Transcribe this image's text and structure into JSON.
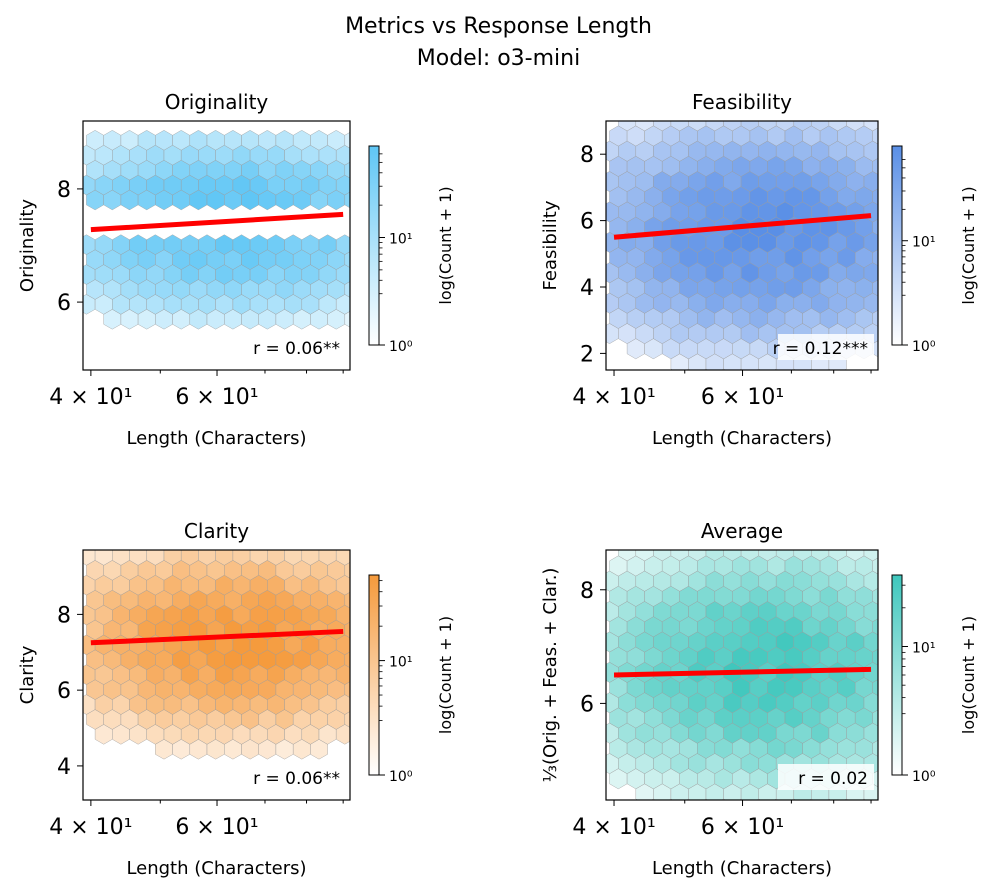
{
  "figure": {
    "title_line1": "Metrics vs Response Length",
    "title_line2": "Model: o3-mini"
  },
  "chart_data": [
    {
      "type": "heatmap",
      "subtype": "hexbin",
      "title": "Originality",
      "xlabel": "Length (Characters)",
      "ylabel": "Originality",
      "x_scale": "log",
      "x_ticks": [
        40,
        60
      ],
      "x_tick_labels": [
        "4 × 10¹",
        "6 × 10¹"
      ],
      "xlim": [
        39,
        92
      ],
      "y_ticks": [
        6,
        8
      ],
      "y_tick_labels": [
        "6",
        "8"
      ],
      "ylim": [
        4.8,
        9.2
      ],
      "colormap": [
        "#ffffff",
        "#5fc6f5"
      ],
      "colorbar_label": "log(Count + 1)",
      "colorbar_ticks": [
        "10⁰",
        "10¹"
      ],
      "colorbar_max": 70,
      "regression": {
        "x": [
          40,
          90
        ],
        "y": [
          7.28,
          7.55
        ],
        "color": "#ff0000"
      },
      "correlation_label": "r = 0.06**",
      "value_levels": [
        5.6,
        5.9,
        6.2,
        6.5,
        6.8,
        7.1,
        7.4,
        7.7,
        8.0,
        8.3,
        8.6,
        8.9
      ],
      "level_weights": [
        0.06,
        0.18,
        0.3,
        0.55,
        0.7,
        0.95,
        0.8,
        1.0,
        0.85,
        0.5,
        0.25,
        0.12
      ],
      "distribution": {
        "y_center": 7.3,
        "y_spread": 1.0,
        "x_center": 62,
        "x_spread": 0.28,
        "peak": 60
      }
    },
    {
      "type": "heatmap",
      "subtype": "hexbin",
      "title": "Feasibility",
      "xlabel": "Length (Characters)",
      "ylabel": "Feasibility",
      "x_scale": "log",
      "x_ticks": [
        40,
        60
      ],
      "x_tick_labels": [
        "4 × 10¹",
        "6 × 10¹"
      ],
      "xlim": [
        39,
        92
      ],
      "y_ticks": [
        2,
        4,
        6,
        8
      ],
      "y_tick_labels": [
        "2",
        "4",
        "6",
        "8"
      ],
      "ylim": [
        1.5,
        9.0
      ],
      "colormap": [
        "#ffffff",
        "#5a8fe6"
      ],
      "colorbar_label": "log(Count + 1)",
      "colorbar_ticks": [
        "10⁰",
        "10¹"
      ],
      "colorbar_max": 80,
      "regression": {
        "x": [
          40,
          90
        ],
        "y": [
          5.5,
          6.15
        ],
        "color": "#ff0000"
      },
      "correlation_label": "r = 0.12***",
      "distribution": {
        "y_center": 5.6,
        "y_spread": 1.5,
        "x_center": 64,
        "x_spread": 0.28,
        "peak": 70
      }
    },
    {
      "type": "heatmap",
      "subtype": "hexbin",
      "title": "Clarity",
      "xlabel": "Length (Characters)",
      "ylabel": "Clarity",
      "x_scale": "log",
      "x_ticks": [
        40,
        60
      ],
      "x_tick_labels": [
        "4 × 10¹",
        "6 × 10¹"
      ],
      "xlim": [
        39,
        92
      ],
      "y_ticks": [
        4,
        6,
        8
      ],
      "y_tick_labels": [
        "4",
        "6",
        "8"
      ],
      "ylim": [
        3.1,
        9.7
      ],
      "colormap": [
        "#ffffff",
        "#f59a3c"
      ],
      "colorbar_label": "log(Count + 1)",
      "colorbar_ticks": [
        "10⁰",
        "10¹"
      ],
      "colorbar_max": 55,
      "regression": {
        "x": [
          40,
          90
        ],
        "y": [
          7.25,
          7.55
        ],
        "color": "#ff0000"
      },
      "correlation_label": "r = 0.06**",
      "distribution": {
        "y_center": 7.3,
        "y_spread": 1.1,
        "x_center": 64,
        "x_spread": 0.28,
        "peak": 50
      }
    },
    {
      "type": "heatmap",
      "subtype": "hexbin",
      "title": "Average",
      "xlabel": "Length (Characters)",
      "ylabel": "⅓(Orig. + Feas. + Clar.)",
      "x_scale": "log",
      "x_ticks": [
        40,
        60
      ],
      "x_tick_labels": [
        "4 × 10¹",
        "6 × 10¹"
      ],
      "xlim": [
        39,
        92
      ],
      "y_ticks": [
        6,
        8
      ],
      "y_tick_labels": [
        "6",
        "8"
      ],
      "ylim": [
        4.3,
        8.7
      ],
      "colormap": [
        "#ffffff",
        "#3fc7bd"
      ],
      "colorbar_label": "log(Count + 1)",
      "colorbar_ticks": [
        "10⁰",
        "10¹"
      ],
      "colorbar_max": 35,
      "regression": {
        "x": [
          40,
          90
        ],
        "y": [
          6.5,
          6.6
        ],
        "color": "#ff0000"
      },
      "correlation_label": "r = 0.02",
      "distribution": {
        "y_center": 6.6,
        "y_spread": 0.95,
        "x_center": 65,
        "x_spread": 0.27,
        "peak": 30
      }
    }
  ]
}
